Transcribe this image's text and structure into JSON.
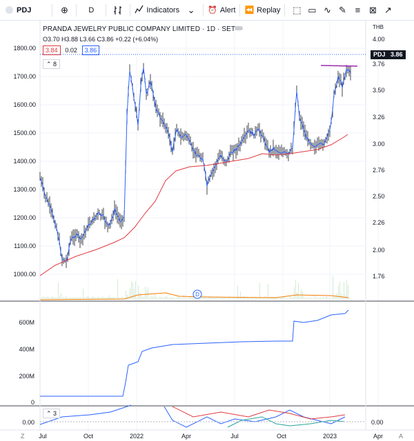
{
  "toolbar": {
    "symbol": "PDJ",
    "interval": "D",
    "indicators_label": "Indicators",
    "alert_label": "Alert",
    "replay_label": "Replay"
  },
  "legend": {
    "title": "PRANDA JEWELRY PUBLIC COMPANY LIMITED · 1D · SET",
    "ohlc": "O3.70  H3.88  L3.66  C3.86  +0.22 (+6.04%)",
    "bid": "3.84",
    "spread": "0.02",
    "ask": "3.86",
    "collapse": "8",
    "sub_collapse": "3"
  },
  "price_axis": {
    "currency": "THB",
    "ticks": [
      "4.00",
      "3.76",
      "3.50",
      "3.26",
      "3.00",
      "2.76",
      "2.50",
      "2.26",
      "2.00",
      "1.76"
    ],
    "symbol_tag": "PDJ",
    "last_price": "3.86"
  },
  "left_axis": {
    "ticks": [
      "1800.00",
      "1700.00",
      "1600.00",
      "1500.00",
      "1400.00",
      "1300.00",
      "1200.00",
      "1100.00",
      "1000.00"
    ]
  },
  "volume_axis": {
    "ticks": [
      "600M",
      "400M",
      "200M",
      "0"
    ]
  },
  "osc_axis": {
    "left": "0.00",
    "right": "0.00"
  },
  "time_axis": {
    "labels": [
      "Jul",
      "Oct",
      "2022",
      "Apr",
      "Jul",
      "Oct",
      "2023",
      "Apr"
    ],
    "left_btn": "Z",
    "right_btn": "A"
  },
  "dividend_marker": "D",
  "colors": {
    "price_line": "#2962ff",
    "ma_line": "#e0393e",
    "obv_line": "#2962ff",
    "volume_line": "#f57c00",
    "resistance_line": "#9c27b0",
    "axis_text": "#131722"
  }
}
